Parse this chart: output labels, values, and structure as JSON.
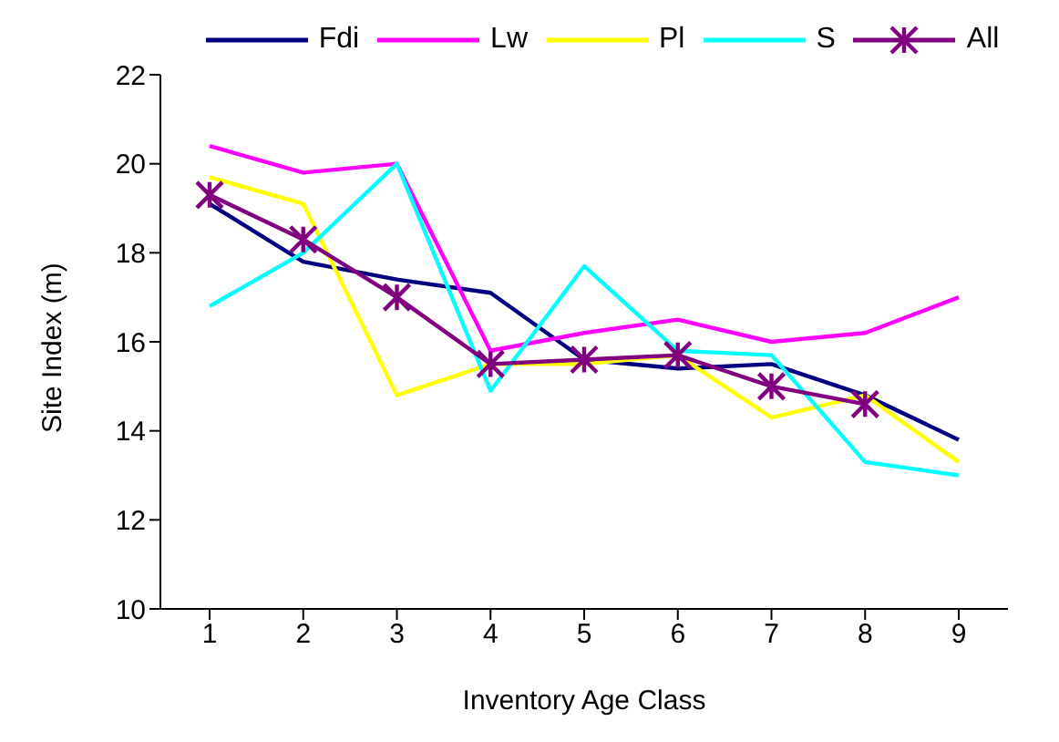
{
  "chart_data": {
    "type": "line",
    "xlabel": "Inventory Age Class",
    "ylabel": "Site Index (m)",
    "categories": [
      "1",
      "2",
      "3",
      "4",
      "5",
      "6",
      "7",
      "8",
      "9"
    ],
    "ylim": [
      10,
      22
    ],
    "yticks": [
      10,
      12,
      14,
      16,
      18,
      20,
      22
    ],
    "grid": false,
    "legend": "top",
    "series": [
      {
        "name": "Fdi",
        "color": "#000080",
        "marker": "none",
        "values": [
          19.1,
          17.8,
          17.4,
          17.1,
          15.6,
          15.4,
          15.5,
          14.8,
          13.8
        ]
      },
      {
        "name": "Lw",
        "color": "#ff00ff",
        "marker": "none",
        "values": [
          20.4,
          19.8,
          20.0,
          15.8,
          16.2,
          16.5,
          16.0,
          16.2,
          17.0
        ]
      },
      {
        "name": "Pl",
        "color": "#ffff00",
        "marker": "none",
        "values": [
          19.7,
          19.1,
          14.8,
          15.5,
          15.5,
          15.7,
          14.3,
          14.8,
          13.3
        ]
      },
      {
        "name": "S",
        "color": "#00ffff",
        "marker": "none",
        "values": [
          16.8,
          18.0,
          20.0,
          14.9,
          17.7,
          15.8,
          15.7,
          13.3,
          13.0
        ]
      },
      {
        "name": "All",
        "color": "#800080",
        "marker": "cross",
        "values": [
          19.3,
          18.3,
          17.0,
          15.5,
          15.6,
          15.7,
          15.0,
          14.6,
          null
        ]
      }
    ]
  }
}
